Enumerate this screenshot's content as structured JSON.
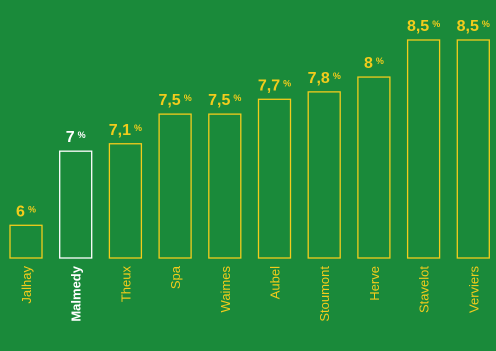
{
  "colors": {
    "background": "#1a8a3a",
    "bar_stroke": "#f2cc1c",
    "highlight_stroke": "#ffffff",
    "label_text": "#f2cc1c",
    "highlight_text": "#ffffff"
  },
  "chart_data": {
    "type": "bar",
    "title": "",
    "xlabel": "",
    "ylabel": "",
    "grid": false,
    "legend": "none",
    "ylim": [
      0,
      8.5
    ],
    "unit": "%",
    "categories": [
      "Jalhay",
      "Malmedy",
      "Theux",
      "Spa",
      "Waimes",
      "Aubel",
      "Stoumont",
      "Herve",
      "Stavelot",
      "Verviers"
    ],
    "values": [
      6,
      7,
      7.1,
      7.5,
      7.5,
      7.7,
      7.8,
      8,
      8.5,
      8.5
    ],
    "value_labels": [
      "6",
      "7",
      "7,1",
      "7,5",
      "7,5",
      "7,7",
      "7,8",
      "8",
      "8,5",
      "8,5"
    ],
    "highlight": "Malmedy"
  }
}
